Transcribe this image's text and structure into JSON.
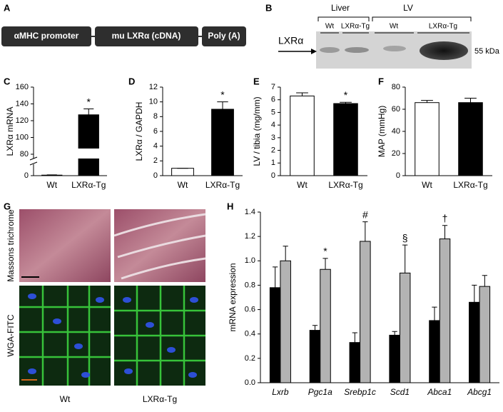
{
  "panels": [
    "A",
    "B",
    "C",
    "D",
    "E",
    "F",
    "G",
    "H"
  ],
  "construct": [
    "αMHC promoter",
    "mu LXRα (cDNA)",
    "Poly (A)"
  ],
  "blot": {
    "groups": [
      "Liver",
      "LV"
    ],
    "lanes": [
      "Wt",
      "LXRα-Tg",
      "Wt",
      "LXRα-Tg"
    ],
    "target": "LXRα",
    "size": "55 kDa"
  },
  "histology": {
    "rows": [
      "Massons trichrome",
      "WGA-FITC"
    ],
    "columns": [
      "Wt",
      "LXRα-Tg"
    ]
  },
  "chart_data": [
    {
      "type": "bar",
      "y_label": "LXRα mRNA",
      "categories": [
        "Wt",
        "LXRα-Tg"
      ],
      "values": [
        2,
        127
      ],
      "errors": [
        1,
        7
      ],
      "colors": [
        "#ffffff",
        "#000000"
      ],
      "annotations": [
        null,
        "*"
      ],
      "ylim": [
        0,
        160
      ],
      "yticks": [
        0,
        80,
        100,
        120,
        140,
        160
      ],
      "broken_axis": true
    },
    {
      "type": "bar",
      "y_label": "LXRα / GAPDH",
      "categories": [
        "Wt",
        "LXRα-Tg"
      ],
      "values": [
        1.0,
        9.0
      ],
      "errors": [
        0,
        1.0
      ],
      "colors": [
        "#ffffff",
        "#000000"
      ],
      "annotations": [
        null,
        "*"
      ],
      "ylim": [
        0,
        12
      ],
      "yticks": [
        0,
        2,
        4,
        6,
        8,
        10,
        12
      ]
    },
    {
      "type": "bar",
      "y_label": "LV / tibia (mg/mm)",
      "categories": [
        "Wt",
        "LXRα-Tg"
      ],
      "values": [
        6.3,
        5.7
      ],
      "errors": [
        0.25,
        0.1
      ],
      "colors": [
        "#ffffff",
        "#000000"
      ],
      "annotations": [
        null,
        "*"
      ],
      "ylim": [
        0,
        7
      ],
      "yticks": [
        0,
        1,
        2,
        3,
        4,
        5,
        6,
        7
      ]
    },
    {
      "type": "bar",
      "y_label": "MAP (mmHg)",
      "categories": [
        "Wt",
        "LXRα-Tg"
      ],
      "values": [
        66,
        66
      ],
      "errors": [
        2,
        4
      ],
      "colors": [
        "#ffffff",
        "#000000"
      ],
      "annotations": [
        null,
        null
      ],
      "ylim": [
        0,
        80
      ],
      "yticks": [
        0,
        20,
        40,
        60,
        80
      ]
    },
    {
      "type": "bar",
      "y_label": "mRNA expression",
      "categories": [
        "Lxrb",
        "Pgc1a",
        "Srebp1c",
        "Scd1",
        "Abca1",
        "Abcg1"
      ],
      "series": [
        {
          "color": "#000000",
          "values": [
            0.78,
            0.43,
            0.33,
            0.39,
            0.51,
            0.66
          ],
          "errors": [
            0.17,
            0.04,
            0.08,
            0.03,
            0.11,
            0.14
          ]
        },
        {
          "color": "#b3b3b3",
          "values": [
            1.0,
            0.93,
            1.16,
            0.9,
            1.18,
            0.79
          ],
          "errors": [
            0.12,
            0.09,
            0.16,
            0.23,
            0.11,
            0.09
          ]
        }
      ],
      "annotations": [
        null,
        "*",
        "#",
        "§",
        "†",
        null
      ],
      "ylim": [
        0,
        1.4
      ],
      "yticks": [
        {
          "value": 0,
          "label": "0.0"
        },
        0.2,
        0.4,
        0.6,
        0.8,
        {
          "value": 1,
          "label": "1.0"
        },
        1.2,
        1.4
      ]
    }
  ]
}
